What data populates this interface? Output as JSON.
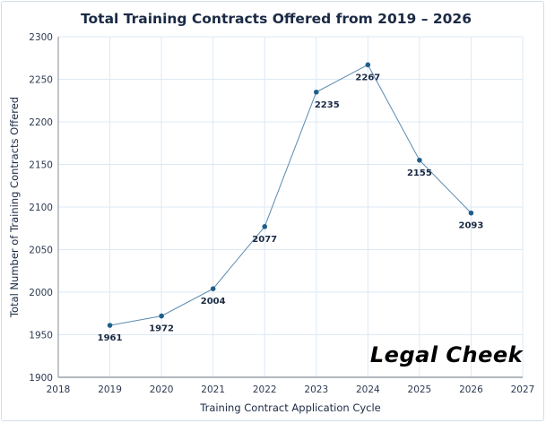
{
  "chart_data": {
    "type": "line",
    "title": "Total Training Contracts Offered from 2019 – 2026",
    "xlabel": "Training Contract Application Cycle",
    "ylabel": "Total Number of Training Contracts Offered",
    "x": [
      2019,
      2020,
      2021,
      2022,
      2023,
      2024,
      2025,
      2026
    ],
    "values": [
      1961,
      1972,
      2004,
      2077,
      2235,
      2267,
      2155,
      2093
    ],
    "xlim": [
      2018,
      2027
    ],
    "ylim": [
      1900,
      2300
    ],
    "xticks": [
      "2018",
      "2019",
      "2020",
      "2021",
      "2022",
      "2023",
      "2024",
      "2025",
      "2026",
      "2027"
    ],
    "yticks": [
      "1900",
      "1950",
      "2000",
      "2050",
      "2100",
      "2150",
      "2200",
      "2250",
      "2300"
    ],
    "grid": true,
    "line_color": "#5a8bb0",
    "marker_color": "#1f5f8b",
    "data_labels": true
  },
  "watermark": "Legal Cheek"
}
